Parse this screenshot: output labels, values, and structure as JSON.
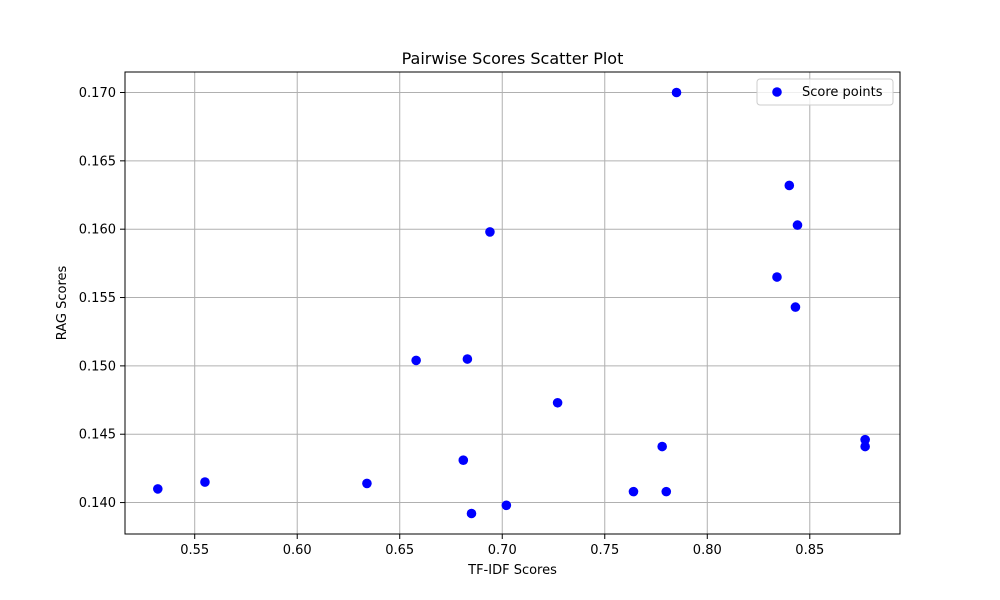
{
  "chart_data": {
    "type": "scatter",
    "title": "Pairwise Scores Scatter Plot",
    "xlabel": "TF-IDF Scores",
    "ylabel": "RAG Scores",
    "xlim": [
      0.516,
      0.894
    ],
    "ylim": [
      0.1377,
      0.1715
    ],
    "xticks": [
      0.55,
      0.6,
      0.65,
      0.7,
      0.75,
      0.8,
      0.85
    ],
    "xtick_labels": [
      "0.55",
      "0.60",
      "0.65",
      "0.70",
      "0.75",
      "0.80",
      "0.85"
    ],
    "yticks": [
      0.14,
      0.145,
      0.15,
      0.155,
      0.16,
      0.165,
      0.17
    ],
    "ytick_labels": [
      "0.140",
      "0.145",
      "0.150",
      "0.155",
      "0.160",
      "0.165",
      "0.170"
    ],
    "grid": true,
    "legend": {
      "position": "top-right",
      "label": "Score points"
    },
    "series": [
      {
        "name": "Score points",
        "color": "#0000ff",
        "points": [
          [
            0.532,
            0.141
          ],
          [
            0.555,
            0.1415
          ],
          [
            0.634,
            0.1414
          ],
          [
            0.658,
            0.1504
          ],
          [
            0.681,
            0.1431
          ],
          [
            0.683,
            0.1505
          ],
          [
            0.685,
            0.1392
          ],
          [
            0.694,
            0.1598
          ],
          [
            0.702,
            0.1398
          ],
          [
            0.727,
            0.1473
          ],
          [
            0.764,
            0.1408
          ],
          [
            0.778,
            0.1441
          ],
          [
            0.78,
            0.1408
          ],
          [
            0.785,
            0.17
          ],
          [
            0.834,
            0.1565
          ],
          [
            0.84,
            0.1632
          ],
          [
            0.843,
            0.1543
          ],
          [
            0.844,
            0.1603
          ],
          [
            0.877,
            0.1446
          ],
          [
            0.877,
            0.1441
          ]
        ]
      }
    ]
  }
}
